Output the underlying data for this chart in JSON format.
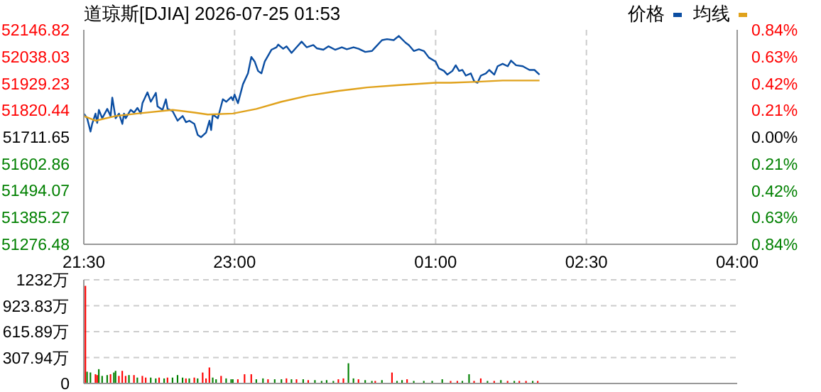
{
  "chart_data": [
    {
      "type": "line",
      "title": "道琼斯[DJIA] 2026-07-25 01:53",
      "legend": "top right",
      "grid": true,
      "line_style": "solid",
      "marker": "none",
      "xlim": [
        "2026-07-24T21:30",
        "2026-07-25T04:00"
      ],
      "xticks": [
        {
          "value": "2026-07-24T21:30",
          "label": "21:30"
        },
        {
          "value": "2026-07-24T23:00",
          "label": "23:00"
        },
        {
          "value": "2026-07-25T01:00",
          "label": "01:00"
        },
        {
          "value": "2026-07-25T02:30",
          "label": "02:30"
        },
        {
          "value": "2026-07-25T04:00",
          "label": "04:00"
        }
      ],
      "ylim": [
        51276.48,
        52146.82
      ],
      "yticks": [
        51276.48,
        51385.27,
        51494.07,
        51602.86,
        51711.65,
        51820.44,
        51929.23,
        52038.03,
        52146.82
      ],
      "y2lim": [
        -0.84,
        0.84
      ],
      "y2ticks": [
        {
          "value": -0.84,
          "label": "0.84%"
        },
        {
          "value": -0.63,
          "label": "0.63%"
        },
        {
          "value": -0.42,
          "label": "0.42%"
        },
        {
          "value": -0.21,
          "label": "0.21%"
        },
        {
          "value": 0,
          "label": "0.00%"
        },
        {
          "value": 0.21,
          "label": "0.21%"
        },
        {
          "value": 0.42,
          "label": "0.42%"
        },
        {
          "value": 0.63,
          "label": "0.63%"
        },
        {
          "value": 0.84,
          "label": "0.84%"
        }
      ],
      "series": [
        {
          "name": "价格",
          "color": "#0b4ea2",
          "x": [
            "2026-07-24T21:30",
            "2026-07-24T21:32",
            "2026-07-24T21:34",
            "2026-07-24T21:35",
            "2026-07-24T21:37",
            "2026-07-24T21:38",
            "2026-07-24T21:39",
            "2026-07-24T21:41",
            "2026-07-24T21:44",
            "2026-07-24T21:46",
            "2026-07-24T21:47",
            "2026-07-24T21:49",
            "2026-07-24T21:51",
            "2026-07-24T21:53",
            "2026-07-24T21:54",
            "2026-07-24T21:55",
            "2026-07-24T21:58",
            "2026-07-24T22:00",
            "2026-07-24T22:02",
            "2026-07-24T22:04",
            "2026-07-24T22:05",
            "2026-07-24T22:08",
            "2026-07-24T22:10",
            "2026-07-24T22:13",
            "2026-07-24T22:14",
            "2026-07-24T22:17",
            "2026-07-24T22:19",
            "2026-07-24T22:20",
            "2026-07-24T22:23",
            "2026-07-24T22:26",
            "2026-07-24T22:29",
            "2026-07-24T22:31",
            "2026-07-24T22:33",
            "2026-07-24T22:36",
            "2026-07-24T22:38",
            "2026-07-24T22:40",
            "2026-07-24T22:43",
            "2026-07-24T22:45",
            "2026-07-24T22:46",
            "2026-07-24T22:47",
            "2026-07-24T22:50",
            "2026-07-24T22:53",
            "2026-07-24T22:55",
            "2026-07-24T22:58",
            "2026-07-24T22:59",
            "2026-07-24T23:00",
            "2026-07-24T23:02",
            "2026-07-24T23:05",
            "2026-07-24T23:08",
            "2026-07-24T23:10",
            "2026-07-24T23:12",
            "2026-07-24T23:14",
            "2026-07-24T23:16",
            "2026-07-24T23:18",
            "2026-07-24T23:22",
            "2026-07-24T23:25",
            "2026-07-24T23:26",
            "2026-07-24T23:29",
            "2026-07-24T23:31",
            "2026-07-24T23:34",
            "2026-07-24T23:37",
            "2026-07-24T23:40",
            "2026-07-24T23:43",
            "2026-07-24T23:47",
            "2026-07-24T23:49",
            "2026-07-24T23:53",
            "2026-07-24T23:56",
            "2026-07-25T00:00",
            "2026-07-25T00:04",
            "2026-07-25T00:07",
            "2026-07-25T00:11",
            "2026-07-25T00:14",
            "2026-07-25T00:18",
            "2026-07-25T00:22",
            "2026-07-25T00:24",
            "2026-07-25T00:28",
            "2026-07-25T00:31",
            "2026-07-25T00:35",
            "2026-07-25T00:38",
            "2026-07-25T00:42",
            "2026-07-25T00:44",
            "2026-07-25T00:47",
            "2026-07-25T00:50",
            "2026-07-25T00:53",
            "2026-07-25T00:56",
            "2026-07-25T01:00",
            "2026-07-25T01:02",
            "2026-07-25T01:05",
            "2026-07-25T01:07",
            "2026-07-25T01:10",
            "2026-07-25T01:12",
            "2026-07-25T01:14",
            "2026-07-25T01:16",
            "2026-07-25T01:18",
            "2026-07-25T01:21",
            "2026-07-25T01:23",
            "2026-07-25T01:25",
            "2026-07-25T01:27",
            "2026-07-25T01:30",
            "2026-07-25T01:32",
            "2026-07-25T01:35",
            "2026-07-25T01:37",
            "2026-07-25T01:40",
            "2026-07-25T01:43",
            "2026-07-25T01:45",
            "2026-07-25T01:48",
            "2026-07-25T01:52",
            "2026-07-25T01:56",
            "2026-07-25T01:59",
            "2026-07-25T02:02"
          ],
          "values": [
            51807,
            51788,
            51734,
            51765,
            51807,
            51769,
            51822,
            51788,
            51826,
            51797,
            51872,
            51788,
            51807,
            51765,
            51807,
            51788,
            51822,
            51811,
            51830,
            51807,
            51849,
            51893,
            51855,
            51891,
            51836,
            51822,
            51865,
            51826,
            51817,
            51778,
            51797,
            51772,
            51778,
            51765,
            51720,
            51711,
            51730,
            51778,
            51740,
            51803,
            51788,
            51865,
            51855,
            51874,
            51861,
            51884,
            51849,
            51926,
            51970,
            52037,
            52018,
            51980,
            51970,
            52018,
            52066,
            52076,
            52087,
            52070,
            52080,
            52053,
            52076,
            52099,
            52076,
            52085,
            52072,
            52066,
            52080,
            52066,
            52076,
            52068,
            52076,
            52070,
            52057,
            52061,
            52076,
            52105,
            52109,
            52105,
            52122,
            52095,
            52085,
            52061,
            52068,
            52061,
            52034,
            52018,
            51990,
            51980,
            51965,
            51980,
            52003,
            51980,
            51984,
            51961,
            51970,
            51938,
            51932,
            51961,
            51970,
            51984,
            51965,
            51999,
            52009,
            51999,
            52022,
            52003,
            51999,
            51984,
            51984,
            51965
          ]
        },
        {
          "name": "均线",
          "color": "#e0a21c",
          "x": [
            "2026-07-24T21:30",
            "2026-07-24T21:37",
            "2026-07-24T21:49",
            "2026-07-24T22:02",
            "2026-07-24T22:23",
            "2026-07-24T22:36",
            "2026-07-24T22:44",
            "2026-07-24T22:59",
            "2026-07-24T23:13",
            "2026-07-24T23:28",
            "2026-07-24T23:44",
            "2026-07-25T00:02",
            "2026-07-25T00:19",
            "2026-07-25T00:37",
            "2026-07-25T01:00",
            "2026-07-25T01:09",
            "2026-07-25T01:25",
            "2026-07-25T01:40",
            "2026-07-25T02:02"
          ],
          "values": [
            51797,
            51778,
            51797,
            51807,
            51822,
            51811,
            51803,
            51807,
            51826,
            51855,
            51880,
            51899,
            51913,
            51922,
            51932,
            51932,
            51936,
            51941,
            51941
          ]
        }
      ]
    },
    {
      "type": "bar",
      "grid": true,
      "tick_labels": "y",
      "xlim": [
        "2026-07-24T21:30",
        "2026-07-25T04:00"
      ],
      "xticks": [
        {
          "value": "2026-07-24T21:30",
          "label": null
        },
        {
          "value": "2026-07-24T23:00",
          "label": null
        },
        {
          "value": "2026-07-25T01:00",
          "label": null
        },
        {
          "value": "2026-07-25T02:30",
          "label": null
        },
        {
          "value": "2026-07-25T04:00",
          "label": null
        }
      ],
      "ylim": [
        0,
        1232
      ],
      "yticks": [
        {
          "value": 0,
          "label": "0"
        },
        {
          "value": 307.94,
          "label": "307.94万"
        },
        {
          "value": 615.89,
          "label": "615.89万"
        },
        {
          "value": 923.83,
          "label": "923.83万"
        },
        {
          "value": 1232,
          "label": "1232万"
        }
      ],
      "x": [
        "2026-07-24T21:31",
        "2026-07-24T21:32",
        "2026-07-24T21:34",
        "2026-07-24T21:37",
        "2026-07-24T21:38",
        "2026-07-24T21:39",
        "2026-07-24T21:41",
        "2026-07-24T21:44",
        "2026-07-24T21:46",
        "2026-07-24T21:48",
        "2026-07-24T21:49",
        "2026-07-24T21:51",
        "2026-07-24T21:53",
        "2026-07-24T21:55",
        "2026-07-24T21:57",
        "2026-07-24T22:00",
        "2026-07-24T22:02",
        "2026-07-24T22:05",
        "2026-07-24T22:07",
        "2026-07-24T22:10",
        "2026-07-24T22:13",
        "2026-07-24T22:15",
        "2026-07-24T22:18",
        "2026-07-24T22:20",
        "2026-07-24T22:23",
        "2026-07-24T22:26",
        "2026-07-24T22:29",
        "2026-07-24T22:31",
        "2026-07-24T22:33",
        "2026-07-24T22:36",
        "2026-07-24T22:38",
        "2026-07-24T22:41",
        "2026-07-24T22:43",
        "2026-07-24T22:45",
        "2026-07-24T22:47",
        "2026-07-24T22:49",
        "2026-07-24T22:52",
        "2026-07-24T22:55",
        "2026-07-24T22:58",
        "2026-07-24T22:59",
        "2026-07-24T23:02",
        "2026-07-24T23:06",
        "2026-07-24T23:10",
        "2026-07-24T23:13",
        "2026-07-24T23:17",
        "2026-07-24T23:20",
        "2026-07-24T23:24",
        "2026-07-24T23:28",
        "2026-07-24T23:31",
        "2026-07-24T23:34",
        "2026-07-24T23:37",
        "2026-07-24T23:41",
        "2026-07-24T23:44",
        "2026-07-24T23:48",
        "2026-07-24T23:52",
        "2026-07-24T23:55",
        "2026-07-24T23:59",
        "2026-07-25T00:02",
        "2026-07-25T00:05",
        "2026-07-25T00:08",
        "2026-07-25T00:11",
        "2026-07-25T00:14",
        "2026-07-25T00:18",
        "2026-07-25T00:22",
        "2026-07-25T00:24",
        "2026-07-25T00:28",
        "2026-07-25T00:34",
        "2026-07-25T00:37",
        "2026-07-25T00:40",
        "2026-07-25T00:43",
        "2026-07-25T00:47",
        "2026-07-25T00:53",
        "2026-07-25T00:58",
        "2026-07-25T01:04",
        "2026-07-25T01:09",
        "2026-07-25T01:13",
        "2026-07-25T01:16",
        "2026-07-25T01:20",
        "2026-07-25T01:23",
        "2026-07-25T01:27",
        "2026-07-25T01:31",
        "2026-07-25T01:35",
        "2026-07-25T01:39",
        "2026-07-25T01:43",
        "2026-07-25T01:47",
        "2026-07-25T01:50",
        "2026-07-25T01:54",
        "2026-07-25T01:58",
        "2026-07-25T02:01"
      ],
      "values": [
        1160,
        140,
        130,
        110,
        100,
        170,
        90,
        100,
        110,
        130,
        150,
        90,
        150,
        90,
        100,
        100,
        70,
        90,
        70,
        70,
        60,
        70,
        60,
        70,
        70,
        100,
        70,
        60,
        60,
        70,
        60,
        130,
        60,
        190,
        70,
        50,
        90,
        60,
        50,
        50,
        50,
        110,
        110,
        50,
        60,
        50,
        50,
        50,
        60,
        50,
        50,
        50,
        40,
        40,
        30,
        40,
        30,
        50,
        60,
        240,
        60,
        50,
        40,
        30,
        30,
        40,
        130,
        30,
        40,
        50,
        30,
        30,
        30,
        50,
        30,
        30,
        30,
        110,
        30,
        60,
        30,
        30,
        40,
        30,
        30,
        30,
        30,
        30,
        30
      ],
      "colors": [
        "#ff0000",
        "#008000",
        "#008000",
        "#ff0000",
        "#ff0000",
        "#008000",
        "#008000",
        "#008000",
        "#ff0000",
        "#008000",
        "#008000",
        "#ff0000",
        "#ff0000",
        "#ff0000",
        "#008000",
        "#ff0000",
        "#008000",
        "#ff0000",
        "#ff0000",
        "#008000",
        "#008000",
        "#ff0000",
        "#008000",
        "#ff0000",
        "#008000",
        "#008000",
        "#008000",
        "#ff0000",
        "#008000",
        "#ff0000",
        "#008000",
        "#ff0000",
        "#ff0000",
        "#ff0000",
        "#008000",
        "#008000",
        "#ff0000",
        "#008000",
        "#008000",
        "#008000",
        "#ff0000",
        "#ff0000",
        "#ff0000",
        "#008000",
        "#008000",
        "#ff0000",
        "#008000",
        "#008000",
        "#ff0000",
        "#008000",
        "#ff0000",
        "#008000",
        "#ff0000",
        "#008000",
        "#008000",
        "#008000",
        "#008000",
        "#ff0000",
        "#ff0000",
        "#008000",
        "#008000",
        "#ff0000",
        "#008000",
        "#008000",
        "#ff0000",
        "#008000",
        "#ff0000",
        "#008000",
        "#008000",
        "#ff0000",
        "#008000",
        "#008000",
        "#008000",
        "#008000",
        "#ff0000",
        "#ff0000",
        "#008000",
        "#008000",
        "#ff0000",
        "#ff0000",
        "#008000",
        "#ff0000",
        "#008000",
        "#ff0000",
        "#008000",
        "#ff0000",
        "#ff0000",
        "#008000",
        "#ff0000"
      ]
    }
  ]
}
